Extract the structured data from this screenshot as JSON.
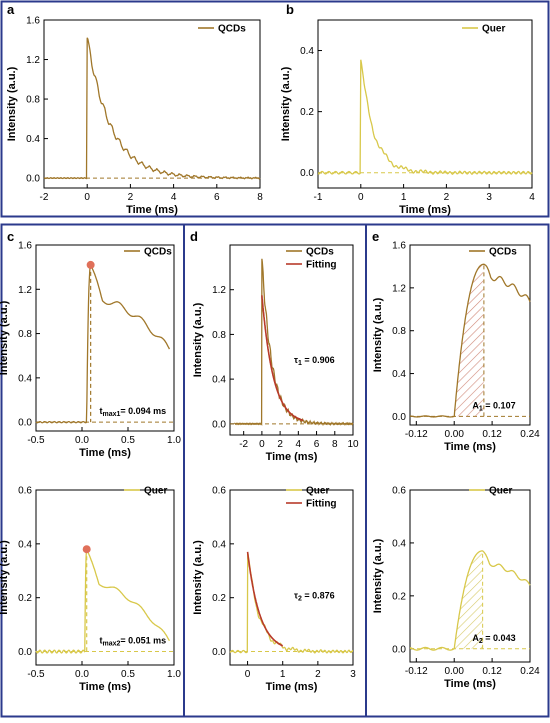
{
  "colors": {
    "frame": "#2b3a8c",
    "qcds": "#a0772a",
    "quer": "#d8c84a",
    "fit": "#b83a2a",
    "marker": "#e0705a",
    "hatch_q": "#d08a7a",
    "hatch_u": "#d8cc70",
    "axis": "#000000"
  },
  "chart_data": [
    {
      "panel": "a",
      "type": "line",
      "xlabel": "Time (ms)",
      "ylabel": "Intensity (a.u.)",
      "xlim": [
        -2,
        8
      ],
      "ylim": [
        -0.1,
        1.6
      ],
      "xticks": [
        "-2",
        "0",
        "2",
        "4",
        "6",
        "8"
      ],
      "yticks": [
        "0.0",
        "0.4",
        "0.8",
        "1.2",
        "1.6"
      ],
      "series": [
        {
          "name": "QCDs",
          "kind": "decay",
          "onset": 0.0,
          "peak": 1.42,
          "tau": 1.1,
          "osc_amp": 0.04,
          "osc_period": 0.35,
          "baseline": 0.0,
          "xmin": -2,
          "xmax": 8
        }
      ]
    },
    {
      "panel": "b",
      "type": "line",
      "xlabel": "Time (ms)",
      "ylabel": "Intensity (a.u.)",
      "xlim": [
        -1,
        4
      ],
      "ylim": [
        -0.05,
        0.5
      ],
      "xticks": [
        "-1",
        "0",
        "1",
        "2",
        "3",
        "4"
      ],
      "yticks": [
        "0.0",
        "0.2",
        "0.4"
      ],
      "series": [
        {
          "name": "Quer",
          "kind": "decay",
          "onset": 0.0,
          "peak": 0.37,
          "tau": 0.3,
          "osc_amp": 0.012,
          "osc_period": 0.45,
          "baseline": 0.0,
          "xmin": -1,
          "xmax": 4
        }
      ]
    },
    {
      "panel": "c",
      "type": "line",
      "xlabel": "Time (ms)",
      "ylabel": "Intensity (a.u.)",
      "xlim": [
        -0.5,
        1.0
      ],
      "ylim": [
        -0.08,
        1.6
      ],
      "xticks": [
        "-0.5",
        "0.0",
        "0.5",
        "1.0"
      ],
      "yticks": [
        "0.0",
        "0.4",
        "0.8",
        "1.2",
        "1.6"
      ],
      "annotation": {
        "text": "t",
        "sub": "max1",
        "after": "= 0.094 ms",
        "x": 0.094
      },
      "series": [
        {
          "name": "QCDs",
          "kind": "rise",
          "onset": 0.05,
          "peak_x": 0.094,
          "peak": 1.42,
          "shoulder": 1.1,
          "end": 0.66,
          "xmin": -0.5,
          "xmax": 0.95
        }
      ]
    },
    {
      "panel": "c2",
      "type": "line",
      "xlabel": "Time (ms)",
      "ylabel": "Intensity (a.u.)",
      "xlim": [
        -0.5,
        1.0
      ],
      "ylim": [
        -0.05,
        0.6
      ],
      "xticks": [
        "-0.5",
        "0.0",
        "0.5",
        "1.0"
      ],
      "yticks": [
        "0.0",
        "0.2",
        "0.4",
        "0.6"
      ],
      "annotation": {
        "text": "t",
        "sub": "max2",
        "after": "= 0.051 ms",
        "x": 0.051
      },
      "series": [
        {
          "name": "Quer",
          "kind": "rise",
          "onset": 0.03,
          "peak_x": 0.051,
          "peak": 0.38,
          "shoulder": 0.25,
          "end": 0.04,
          "xmin": -0.5,
          "xmax": 0.95
        }
      ]
    },
    {
      "panel": "d",
      "type": "line",
      "xlabel": "Time (ms)",
      "ylabel": "Intensity (a.u.)",
      "xlim": [
        -3.5,
        10
      ],
      "ylim": [
        -0.1,
        1.6
      ],
      "xticks": [
        "-2",
        "0",
        "2",
        "4",
        "6",
        "8",
        "10"
      ],
      "yticks": [
        "0.0",
        "0.4",
        "0.8",
        "1.2"
      ],
      "annotation": {
        "text": "τ",
        "sub": "1",
        "after": " = 0.906"
      },
      "series": [
        {
          "name": "QCDs",
          "kind": "decay",
          "onset": 0.0,
          "peak": 1.48,
          "tau": 1.1,
          "osc_amp": 0.04,
          "osc_period": 0.4,
          "baseline": 0.0,
          "xmin": -3,
          "xmax": 10
        },
        {
          "name": "Fitting",
          "kind": "fit",
          "onset": 0.0,
          "peak": 1.15,
          "tau": 1.25,
          "xmin": 0.0,
          "xmax": 4.5
        }
      ]
    },
    {
      "panel": "d2",
      "type": "line",
      "xlabel": "Time (ms)",
      "ylabel": "Intensity (a.u.)",
      "xlim": [
        -0.5,
        3
      ],
      "ylim": [
        -0.05,
        0.6
      ],
      "xticks": [
        "0",
        "1",
        "2",
        "3"
      ],
      "yticks": [
        "0.0",
        "0.2",
        "0.4",
        "0.6"
      ],
      "annotation": {
        "text": "τ",
        "sub": "2",
        "after": " = 0.876"
      },
      "series": [
        {
          "name": "Quer",
          "kind": "decay",
          "onset": 0.0,
          "peak": 0.37,
          "tau": 0.33,
          "osc_amp": 0.015,
          "osc_period": 0.4,
          "baseline": 0.0,
          "xmin": -0.5,
          "xmax": 3
        },
        {
          "name": "Fitting",
          "kind": "fit",
          "onset": 0.0,
          "peak": 0.37,
          "tau": 0.35,
          "xmin": 0.0,
          "xmax": 1.0
        }
      ]
    },
    {
      "panel": "e",
      "type": "area",
      "xlabel": "Time (ms)",
      "ylabel": "Intensity (a.u.)",
      "xlim": [
        -0.14,
        0.24
      ],
      "ylim": [
        -0.08,
        1.6
      ],
      "xticks": [
        "-0.12",
        "0.00",
        "0.12",
        "0.24"
      ],
      "yticks": [
        "0.0",
        "0.4",
        "0.8",
        "1.2",
        "1.6"
      ],
      "annotation": {
        "text": "A",
        "sub": "1",
        "after": " = 0.107"
      },
      "shade_to": 0.094,
      "series": [
        {
          "name": "QCDs",
          "kind": "rise",
          "onset": 0.0,
          "peak_x": 0.094,
          "peak": 1.42,
          "shoulder": 1.3,
          "end": 1.07,
          "xmin": -0.14,
          "xmax": 0.24
        }
      ]
    },
    {
      "panel": "e2",
      "type": "area",
      "xlabel": "Time (ms)",
      "ylabel": "Intensity (a.u.)",
      "xlim": [
        -0.14,
        0.24
      ],
      "ylim": [
        -0.05,
        0.6
      ],
      "xticks": [
        "-0.12",
        "0.00",
        "0.12",
        "0.24"
      ],
      "yticks": [
        "0.0",
        "0.2",
        "0.4",
        "0.6"
      ],
      "annotation": {
        "text": "A",
        "sub": "2",
        "after": " = 0.043"
      },
      "shade_to": 0.09,
      "series": [
        {
          "name": "Quer",
          "kind": "rise",
          "onset": 0.0,
          "peak_x": 0.09,
          "peak": 0.37,
          "shoulder": 0.32,
          "end": 0.24,
          "xmin": -0.14,
          "xmax": 0.24
        }
      ]
    }
  ]
}
